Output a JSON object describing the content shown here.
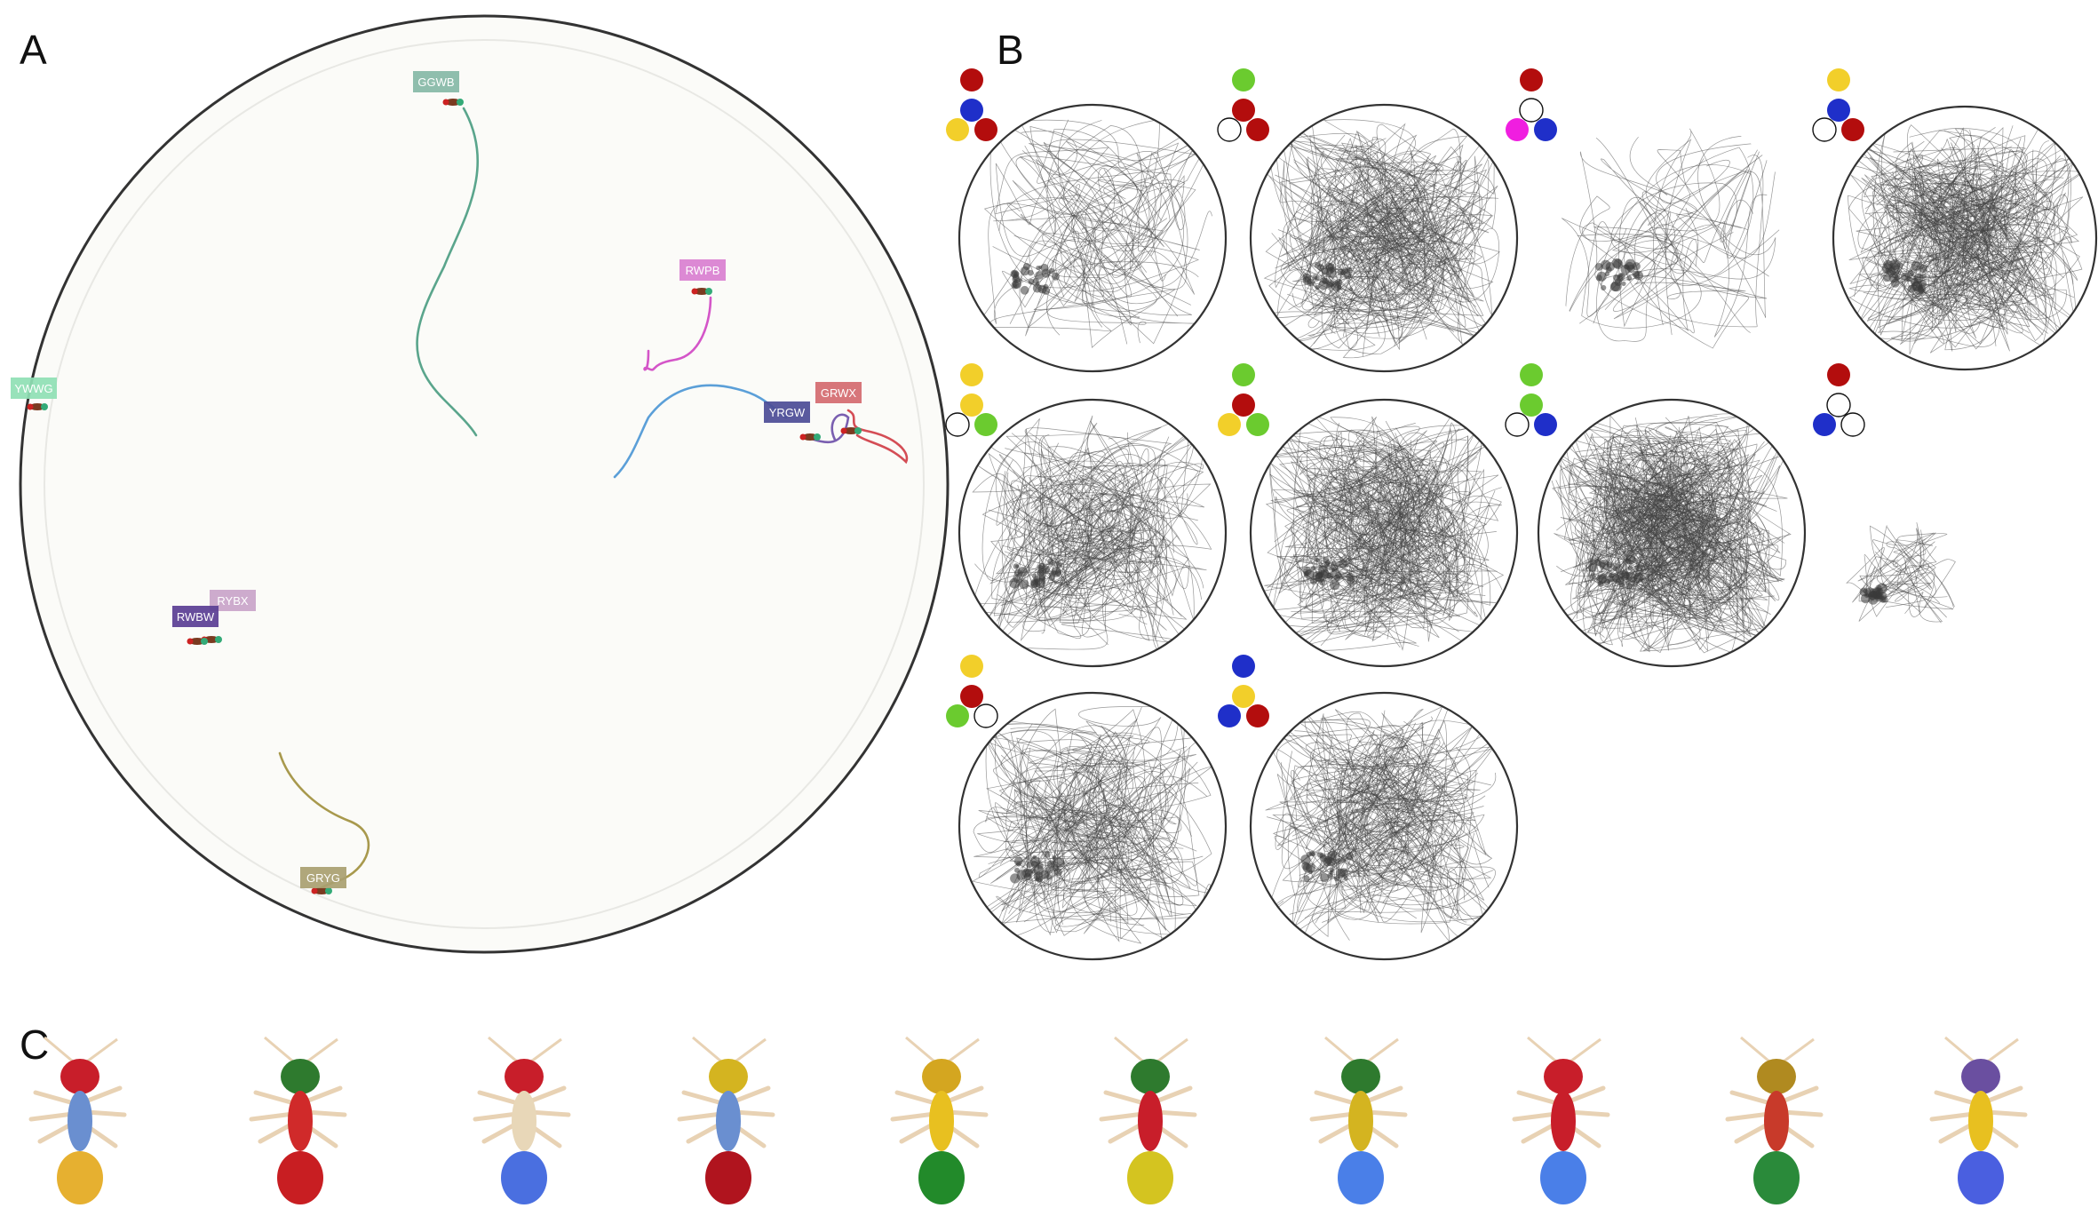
{
  "panels": {
    "a": "A",
    "b": "B",
    "c": "C"
  },
  "arena_tags": [
    {
      "id": "GGWB",
      "color": "#86b8a6"
    },
    {
      "id": "RWPB",
      "color": "#d97fd0"
    },
    {
      "id": "YWWG",
      "color": "#8fe0b4"
    },
    {
      "id": "GRWX",
      "color": "#d46a6f"
    },
    {
      "id": "YRGW",
      "color": "#4c4c96"
    },
    {
      "id": "RYBX",
      "color": "#c9a4c9"
    },
    {
      "id": "RWBW",
      "color": "#5a3e94"
    },
    {
      "id": "GRYG",
      "color": "#a9a070"
    }
  ],
  "track_colors": {
    "GGWB": "#5aa58c",
    "RWPB": "#d455c8",
    "GRYG": "#a8994d",
    "GRWX": "#d44d55",
    "YRGW": "#7a5fb0",
    "blue": "#5b9fd8"
  },
  "marker_colors": {
    "R": "#b30d0d",
    "B": "#1f2fc9",
    "Y": "#f2cf2a",
    "G": "#6bcb2f",
    "P": "#f01ee0",
    "W": "#ffffff"
  },
  "marker_sets": [
    [
      "R",
      "B",
      "Y",
      "R"
    ],
    [
      "G",
      "R",
      "W",
      "R"
    ],
    [
      "R",
      "W",
      "P",
      "B"
    ],
    [
      "Y",
      "B",
      "W",
      "R"
    ],
    [
      "Y",
      "Y",
      "W",
      "G"
    ],
    [
      "G",
      "R",
      "Y",
      "G"
    ],
    [
      "G",
      "G",
      "W",
      "B"
    ],
    [
      "R",
      "W",
      "B",
      "W"
    ],
    [
      "Y",
      "R",
      "G",
      "W"
    ],
    [
      "B",
      "Y",
      "B",
      "R"
    ]
  ],
  "ant_colors": [
    [
      "#c81e2a",
      "#6a8fd0",
      "#e6b030"
    ],
    [
      "#2e7a2e",
      "#d02a2a",
      "#c81e22"
    ],
    [
      "#c81e2a",
      "#e8d7b8",
      "#4a6fe0"
    ],
    [
      "#d4b420",
      "#6a8fd0",
      "#b0141e"
    ],
    [
      "#d4a620",
      "#e8c020",
      "#228a2a"
    ],
    [
      "#2e7a2e",
      "#c81e2a",
      "#d4c420"
    ],
    [
      "#2e7a2e",
      "#d4b420",
      "#4a7fe8"
    ],
    [
      "#c81e2a",
      "#c81e2a",
      "#4a7fe8"
    ],
    [
      "#b08a20",
      "#c83a2a",
      "#2a8a3a"
    ],
    [
      "#6a4fa0",
      "#e8c020",
      "#4a5fe0"
    ]
  ]
}
